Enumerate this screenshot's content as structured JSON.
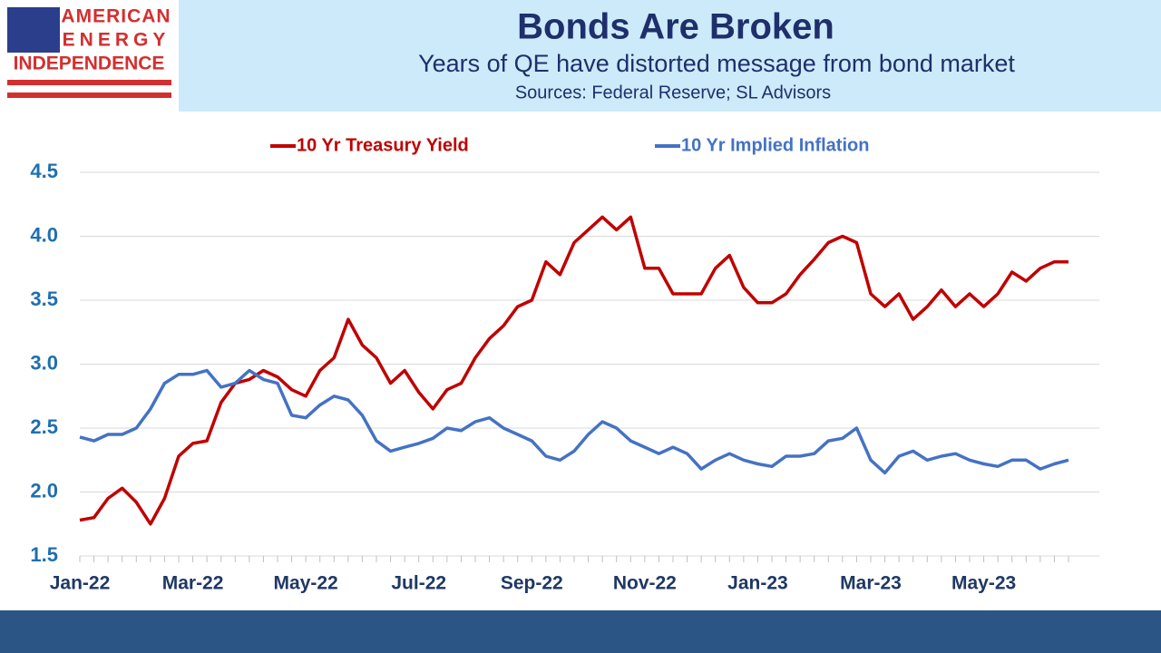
{
  "logo": {
    "lines": [
      "AMERICAN",
      "ENERGY",
      "INDEPENDENCE"
    ]
  },
  "chart_data": {
    "type": "line",
    "title": "Bonds Are Broken",
    "subtitle": "Years of QE have distorted message from bond market",
    "source": "Sources: Federal Reserve; SL Advisors",
    "categories": [
      "Jan-22",
      null,
      null,
      null,
      null,
      null,
      null,
      null,
      "Mar-22",
      null,
      null,
      null,
      null,
      null,
      null,
      null,
      "May-22",
      null,
      null,
      null,
      null,
      null,
      null,
      null,
      "Jul-22",
      null,
      null,
      null,
      null,
      null,
      null,
      null,
      "Sep-22",
      null,
      null,
      null,
      null,
      null,
      null,
      null,
      "Nov-22",
      null,
      null,
      null,
      null,
      null,
      null,
      null,
      "Jan-23",
      null,
      null,
      null,
      null,
      null,
      null,
      null,
      "Mar-23",
      null,
      null,
      null,
      null,
      null,
      null,
      null,
      "May-23",
      null,
      null,
      null,
      null,
      null,
      null
    ],
    "series": [
      {
        "name": "10 Yr Treasury Yield",
        "color": "#c00000",
        "values": [
          1.78,
          1.8,
          1.95,
          2.03,
          1.92,
          1.75,
          1.95,
          2.28,
          2.38,
          2.4,
          2.7,
          2.85,
          2.88,
          2.95,
          2.9,
          2.8,
          2.75,
          2.95,
          3.05,
          3.35,
          3.15,
          3.05,
          2.85,
          2.95,
          2.78,
          2.65,
          2.8,
          2.85,
          3.05,
          3.2,
          3.3,
          3.45,
          3.5,
          3.8,
          3.7,
          3.95,
          4.05,
          4.15,
          4.05,
          4.15,
          3.75,
          3.75,
          3.55,
          3.55,
          3.55,
          3.75,
          3.85,
          3.6,
          3.48,
          3.48,
          3.55,
          3.7,
          3.82,
          3.95,
          4.0,
          3.95,
          3.55,
          3.45,
          3.55,
          3.35,
          3.45,
          3.58,
          3.45,
          3.55,
          3.45,
          3.55,
          3.72,
          3.65,
          3.75,
          3.8,
          3.8
        ]
      },
      {
        "name": "10 Yr Implied Inflation",
        "color": "#4472c4",
        "values": [
          2.43,
          2.4,
          2.45,
          2.45,
          2.5,
          2.65,
          2.85,
          2.92,
          2.92,
          2.95,
          2.82,
          2.85,
          2.95,
          2.88,
          2.85,
          2.6,
          2.58,
          2.68,
          2.75,
          2.72,
          2.6,
          2.4,
          2.32,
          2.35,
          2.38,
          2.42,
          2.5,
          2.48,
          2.55,
          2.58,
          2.5,
          2.45,
          2.4,
          2.28,
          2.25,
          2.32,
          2.45,
          2.55,
          2.5,
          2.4,
          2.35,
          2.3,
          2.35,
          2.3,
          2.18,
          2.25,
          2.3,
          2.25,
          2.22,
          2.2,
          2.28,
          2.28,
          2.3,
          2.4,
          2.42,
          2.5,
          2.25,
          2.15,
          2.28,
          2.32,
          2.25,
          2.28,
          2.3,
          2.25,
          2.22,
          2.2,
          2.25,
          2.25,
          2.18,
          2.22,
          2.25
        ]
      }
    ],
    "ylim": [
      1.5,
      4.5
    ],
    "yticks": [
      1.5,
      {
        "value": 2,
        "label": "2.0"
      },
      2.5,
      {
        "value": 3,
        "label": "3.0"
      },
      3.5,
      {
        "value": 4,
        "label": "4.0"
      },
      4.5
    ],
    "grid": true,
    "legend": "top"
  }
}
